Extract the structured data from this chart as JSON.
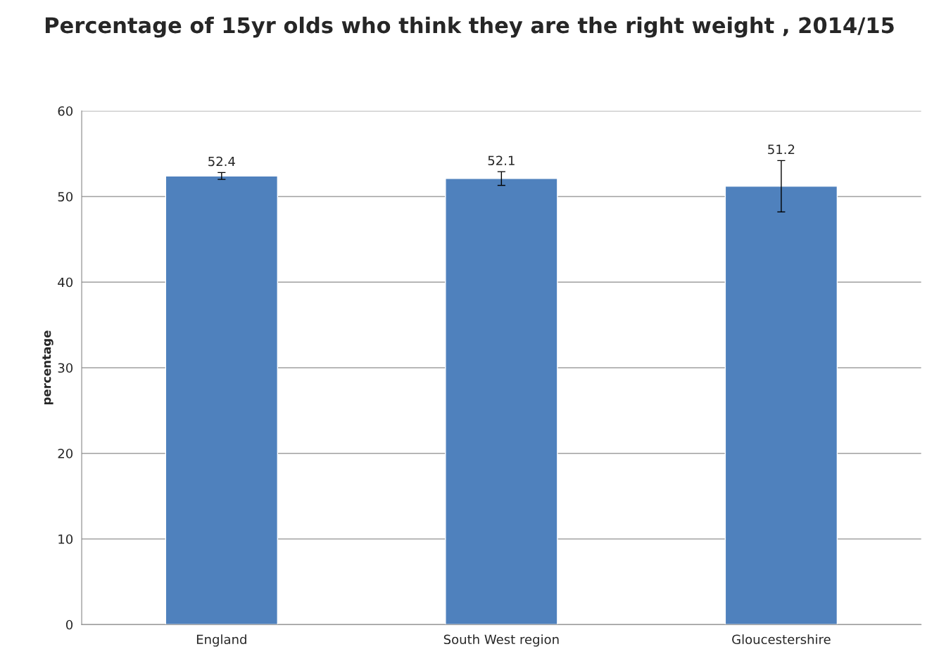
{
  "chart_data": {
    "type": "bar",
    "title": "Percentage of 15yr olds who think they are the right weight , 2014/15",
    "ylabel": "percentage",
    "categories": [
      "England",
      "South West region",
      "Gloucestershire"
    ],
    "values": [
      52.4,
      52.1,
      51.2
    ],
    "errors": [
      0.4,
      0.8,
      3.0
    ],
    "color": "#4f81bd",
    "ylim": [
      0,
      60
    ],
    "yticks": [
      0,
      10,
      20,
      30,
      40,
      50,
      60
    ],
    "grid": "y",
    "data_labels": true,
    "legend": false
  }
}
